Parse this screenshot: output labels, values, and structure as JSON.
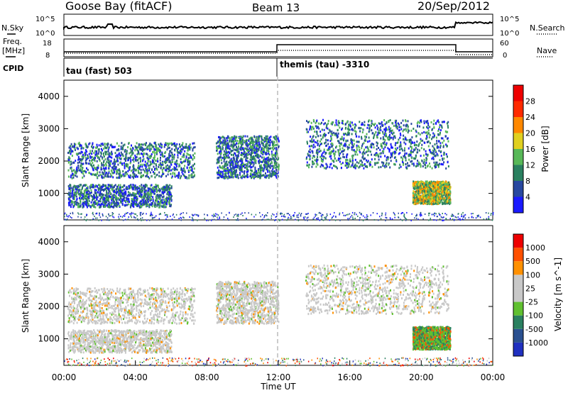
{
  "header": {
    "station": "Goose Bay (fitACF)",
    "beam": "Beam 13",
    "date": "20/Sep/2012"
  },
  "top_panels": {
    "nsky_label": "N.Sky",
    "nsky_ticks": [
      "10^5",
      "10^0"
    ],
    "nsearch_label": "N.Search",
    "nsearch_ticks": [
      "10^5",
      "10^0"
    ],
    "freq_label": "Freq.",
    "freq_unit": "[MHz]",
    "freq_ticks": [
      "18",
      "8"
    ],
    "nave_label": "Nave",
    "nave_ticks": [
      "60",
      "0"
    ],
    "cpid_label": "CPID",
    "cpid_segments": [
      {
        "label": "tau (fast) 503",
        "start_hour": 0
      },
      {
        "label": "themis (tau) -3310",
        "start_hour": 12
      }
    ]
  },
  "chart_data": [
    {
      "type": "heatmap",
      "title": "",
      "xlabel": "Time UT",
      "ylabel": "Slant Range [km]",
      "xlim": [
        0,
        24
      ],
      "ylim": [
        180,
        4500
      ],
      "x_ticks": [
        "00:00",
        "04:00",
        "08:00",
        "12:00",
        "16:00",
        "20:00",
        "00:00"
      ],
      "y_ticks": [
        1000,
        2000,
        3000,
        4000
      ],
      "colorbar": {
        "label": "Power [dB]",
        "ticks": [
          "4",
          "8",
          "12",
          "16",
          "20",
          "24",
          "28"
        ],
        "colors": [
          "#1a1aff",
          "#2848a0",
          "#2a8060",
          "#58b858",
          "#e0d020",
          "#ff8800",
          "#ff2a00",
          "#ee0000"
        ]
      },
      "echo_regions": [
        {
          "t0": 0.2,
          "t1": 7.3,
          "r0": 1500,
          "r1": 2600,
          "level": "low-mid"
        },
        {
          "t0": 0.2,
          "t1": 6.0,
          "r0": 600,
          "r1": 1300,
          "level": "mid"
        },
        {
          "t0": 8.5,
          "t1": 12.0,
          "r0": 1500,
          "r1": 2800,
          "level": "mid"
        },
        {
          "t0": 13.5,
          "t1": 21.5,
          "r0": 1800,
          "r1": 3300,
          "level": "low-mid"
        },
        {
          "t0": 19.5,
          "t1": 21.6,
          "r0": 700,
          "r1": 1400,
          "level": "high"
        }
      ]
    },
    {
      "type": "heatmap",
      "title": "",
      "xlabel": "Time UT",
      "ylabel": "Slant Range [km]",
      "xlim": [
        0,
        24
      ],
      "ylim": [
        180,
        4500
      ],
      "x_ticks": [
        "00:00",
        "04:00",
        "08:00",
        "12:00",
        "16:00",
        "20:00",
        "00:00"
      ],
      "y_ticks": [
        1000,
        2000,
        3000,
        4000
      ],
      "colorbar": {
        "label": "Velocity [m s^-1]",
        "ticks": [
          "1000",
          "500",
          "100",
          "25",
          "-25",
          "-100",
          "-500",
          "-1000"
        ],
        "colors": [
          "#2030c0",
          "#2a5090",
          "#2a8060",
          "#60c030",
          "#c8c8c8",
          "#c8c8c8",
          "#ff9000",
          "#ff5000",
          "#ee0000"
        ]
      },
      "echo_regions": [
        {
          "t0": 0.2,
          "t1": 7.3,
          "r0": 1500,
          "r1": 2600,
          "level": "ground-scatter"
        },
        {
          "t0": 0.2,
          "t1": 6.0,
          "r0": 600,
          "r1": 1300,
          "level": "ground-scatter"
        },
        {
          "t0": 8.5,
          "t1": 12.0,
          "r0": 1500,
          "r1": 2800,
          "level": "ground-scatter"
        },
        {
          "t0": 13.5,
          "t1": 21.5,
          "r0": 1800,
          "r1": 3300,
          "level": "ground-scatter"
        },
        {
          "t0": 19.5,
          "t1": 21.6,
          "r0": 700,
          "r1": 1400,
          "level": "mixed"
        }
      ]
    }
  ]
}
